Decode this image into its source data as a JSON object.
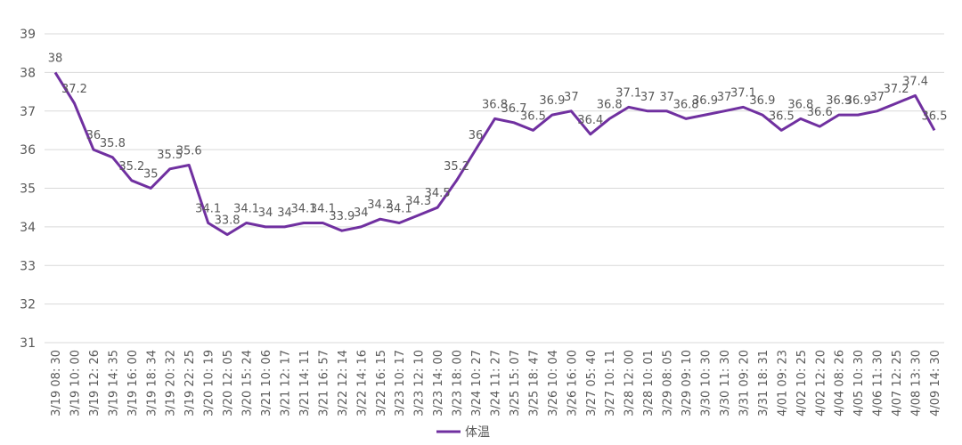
{
  "chart_data": {
    "type": "line",
    "title": "",
    "xlabel": "",
    "ylabel": "",
    "ylim": [
      31,
      39
    ],
    "y_ticks": [
      31,
      32,
      33,
      34,
      35,
      36,
      37,
      38,
      39
    ],
    "grid": true,
    "legend_placement": "bottom",
    "line_color": "#7030a0",
    "categories": [
      "3/19 08: 30",
      "3/19 10: 00",
      "3/19 12: 26",
      "3/19 14: 35",
      "3/19 16: 00",
      "3/19 18: 34",
      "3/19 20: 32",
      "3/19 22: 25",
      "3/20 10: 19",
      "3/20 12: 05",
      "3/20 15: 24",
      "3/21 10: 06",
      "3/21 12: 17",
      "3/21 14: 11",
      "3/21 16: 57",
      "3/22 12: 14",
      "3/22 14: 16",
      "3/22 16: 15",
      "3/23 10: 17",
      "3/23 12: 10",
      "3/23 14: 00",
      "3/23 18: 00",
      "3/24 10: 27",
      "3/24 11: 27",
      "3/25 15: 07",
      "3/25 18: 47",
      "3/26 10: 04",
      "3/26 16: 00",
      "3/27 05: 40",
      "3/27 10: 11",
      "3/28 12: 00",
      "3/28 10: 01",
      "3/29 08: 05",
      "3/29 09: 10",
      "3/30 10: 30",
      "3/30 11: 30",
      "3/31 09: 20",
      "3/31 18: 31",
      "4/01 09: 23",
      "4/02 10: 25",
      "4/02 12: 20",
      "4/04 08: 26",
      "4/05 10: 30",
      "4/06 11: 30",
      "4/07 12: 25",
      "4/08 13: 30",
      "4/09 14: 30"
    ],
    "series": [
      {
        "name": "体温",
        "values": [
          38,
          37.2,
          36,
          35.8,
          35.2,
          35,
          35.5,
          35.6,
          34.1,
          33.8,
          34.1,
          34,
          34,
          34.1,
          34.1,
          33.9,
          34,
          34.2,
          34.1,
          34.3,
          34.5,
          35.2,
          36,
          36.8,
          36.7,
          36.5,
          36.9,
          37,
          36.4,
          36.8,
          37.1,
          37,
          37,
          36.8,
          36.9,
          37,
          37.1,
          36.9,
          36.5,
          36.8,
          36.6,
          36.9,
          36.9,
          37,
          37.2,
          37.4,
          36.5
        ]
      }
    ]
  }
}
